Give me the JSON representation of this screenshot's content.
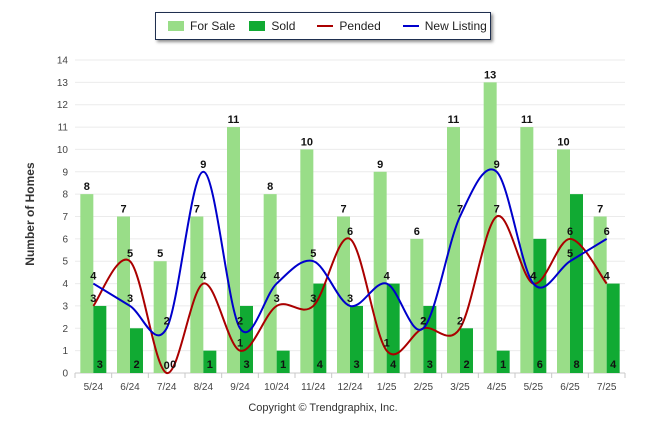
{
  "chart_data": {
    "type": "bar",
    "title": "",
    "xlabel": "",
    "ylabel": "Number of Homes",
    "ylim": [
      0,
      14
    ],
    "yticks": [
      0,
      1,
      2,
      3,
      4,
      5,
      6,
      7,
      8,
      9,
      10,
      11,
      12,
      13,
      14
    ],
    "grid": true,
    "legend_position": "top-center",
    "categories": [
      "5/24",
      "6/24",
      "7/24",
      "8/24",
      "9/24",
      "10/24",
      "11/24",
      "12/24",
      "1/25",
      "2/25",
      "3/25",
      "4/25",
      "5/25",
      "6/25",
      "7/25"
    ],
    "series": [
      {
        "name": "For Sale",
        "kind": "bar",
        "color": "#99dd88",
        "values": [
          8,
          7,
          5,
          7,
          11,
          8,
          10,
          7,
          9,
          6,
          11,
          13,
          11,
          10,
          7
        ]
      },
      {
        "name": "Sold",
        "kind": "bar",
        "color": "#11aa33",
        "values": [
          3,
          2,
          0,
          1,
          3,
          1,
          4,
          3,
          4,
          3,
          2,
          1,
          6,
          8,
          4
        ]
      },
      {
        "name": "Pended",
        "kind": "line",
        "color": "#aa0000",
        "values": [
          3,
          5,
          0,
          4,
          1,
          3,
          3,
          6,
          1,
          2,
          2,
          7,
          4,
          6,
          4
        ]
      },
      {
        "name": "New Listing",
        "kind": "line",
        "color": "#0000cc",
        "values": [
          4,
          3,
          2,
          9,
          2,
          4,
          5,
          3,
          4,
          2,
          7,
          9,
          4,
          5,
          6
        ]
      }
    ]
  },
  "copyright": "Copyright © Trendgraphix, Inc."
}
